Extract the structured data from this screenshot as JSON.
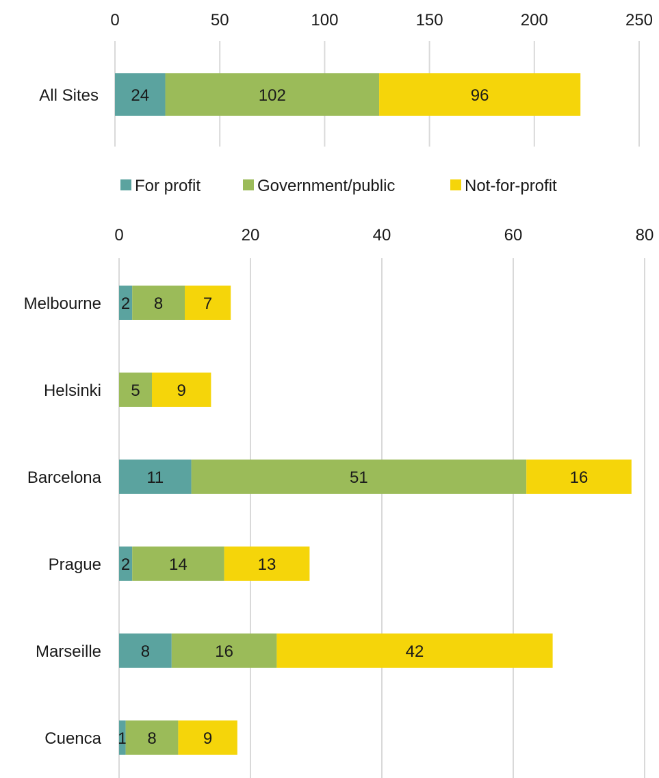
{
  "colors": {
    "for_profit": "#5ba39f",
    "government_public": "#9bbb59",
    "not_for_profit": "#f5d50a",
    "grid": "#d9d9d9",
    "text": "#1a1a1a"
  },
  "legend": {
    "placement": "between-charts",
    "items": [
      {
        "label": "For profit",
        "color": "#5ba39f"
      },
      {
        "label": "Government/public",
        "color": "#9bbb59"
      },
      {
        "label": "Not-for-profit",
        "color": "#f5d50a"
      }
    ]
  },
  "chart_data": [
    {
      "type": "bar",
      "orientation": "horizontal",
      "stacked": true,
      "title": "",
      "xlabel": "",
      "ylabel": "",
      "xlim": [
        0,
        250
      ],
      "ticks": [
        "0",
        "50",
        "100",
        "150",
        "200",
        "250"
      ],
      "grid": true,
      "categories": [
        "All Sites"
      ],
      "series": [
        {
          "name": "For profit",
          "values": [
            24
          ]
        },
        {
          "name": "Government/public",
          "values": [
            102
          ]
        },
        {
          "name": "Not-for-profit",
          "values": [
            96
          ]
        }
      ]
    },
    {
      "type": "bar",
      "orientation": "horizontal",
      "stacked": true,
      "title": "",
      "xlabel": "",
      "ylabel": "",
      "xlim": [
        0,
        80
      ],
      "ticks": [
        "0",
        "20",
        "40",
        "60",
        "80"
      ],
      "grid": true,
      "categories": [
        "Melbourne",
        "Helsinki",
        "Barcelona",
        "Prague",
        "Marseille",
        "Cuenca"
      ],
      "series": [
        {
          "name": "For profit",
          "values": [
            2,
            0,
            11,
            2,
            8,
            1
          ]
        },
        {
          "name": "Government/public",
          "values": [
            8,
            5,
            51,
            14,
            16,
            8
          ]
        },
        {
          "name": "Not-for-profit",
          "values": [
            7,
            9,
            16,
            13,
            42,
            9
          ]
        }
      ]
    }
  ]
}
